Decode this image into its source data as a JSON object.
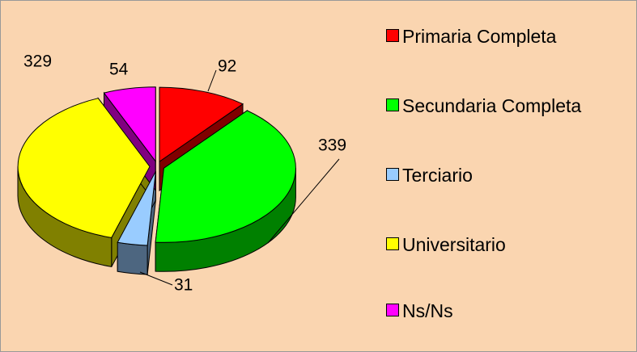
{
  "chart_data": {
    "type": "pie",
    "categories": [
      "Primaria Completa",
      "Secundaria Completa",
      "Terciario",
      "Universitario",
      "Ns/Ns"
    ],
    "values": [
      92,
      339,
      31,
      329,
      54
    ],
    "colors": [
      "#ff0000",
      "#00ff00",
      "#99ccff",
      "#ffff00",
      "#ff00ff"
    ]
  }
}
